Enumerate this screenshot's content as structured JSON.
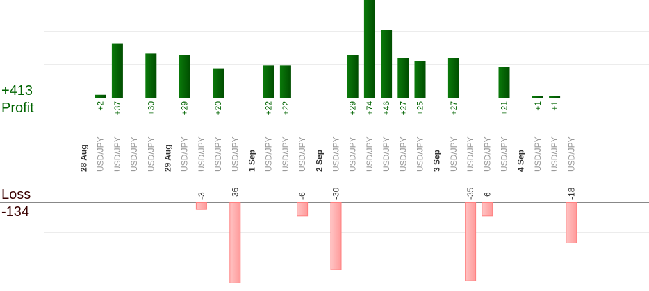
{
  "chart_data": {
    "type": "bar",
    "title": "",
    "profit": {
      "label": "Profit",
      "total": "+413",
      "color": "#006400"
    },
    "loss": {
      "label": "Loss",
      "total": "-134",
      "color": "#ffaaaa"
    },
    "columns": [
      {
        "label": "28 Aug",
        "type": "date"
      },
      {
        "label": "USD/JPY",
        "type": "trade",
        "value": 2
      },
      {
        "label": "USD/JPY",
        "type": "trade",
        "value": 37
      },
      {
        "label": "USD/JPY",
        "type": "trade",
        "value": null
      },
      {
        "label": "USD/JPY",
        "type": "trade",
        "value": 30
      },
      {
        "label": "29 Aug",
        "type": "date"
      },
      {
        "label": "USD/JPY",
        "type": "trade",
        "value": 29
      },
      {
        "label": "USD/JPY",
        "type": "trade",
        "value": -3
      },
      {
        "label": "USD/JPY",
        "type": "trade",
        "value": 20
      },
      {
        "label": "USD/JPY",
        "type": "trade",
        "value": -36
      },
      {
        "label": "1 Sep",
        "type": "date"
      },
      {
        "label": "USD/JPY",
        "type": "trade",
        "value": 22
      },
      {
        "label": "USD/JPY",
        "type": "trade",
        "value": 22
      },
      {
        "label": "USD/JPY",
        "type": "trade",
        "value": -6
      },
      {
        "label": "2 Sep",
        "type": "date"
      },
      {
        "label": "USD/JPY",
        "type": "trade",
        "value": -30
      },
      {
        "label": "USD/JPY",
        "type": "trade",
        "value": 29
      },
      {
        "label": "USD/JPY",
        "type": "trade",
        "value": 74
      },
      {
        "label": "USD/JPY",
        "type": "trade",
        "value": 46
      },
      {
        "label": "USD/JPY",
        "type": "trade",
        "value": 27
      },
      {
        "label": "USD/JPY",
        "type": "trade",
        "value": 25
      },
      {
        "label": "3 Sep",
        "type": "date"
      },
      {
        "label": "USD/JPY",
        "type": "trade",
        "value": 27
      },
      {
        "label": "USD/JPY",
        "type": "trade",
        "value": -35
      },
      {
        "label": "USD/JPY",
        "type": "trade",
        "value": -6
      },
      {
        "label": "USD/JPY",
        "type": "trade",
        "value": 21
      },
      {
        "label": "4 Sep",
        "type": "date"
      },
      {
        "label": "USD/JPY",
        "type": "trade",
        "value": 1
      },
      {
        "label": "USD/JPY",
        "type": "trade",
        "value": 1
      },
      {
        "label": "USD/JPY",
        "type": "trade",
        "value": -18
      }
    ],
    "grid": true
  }
}
